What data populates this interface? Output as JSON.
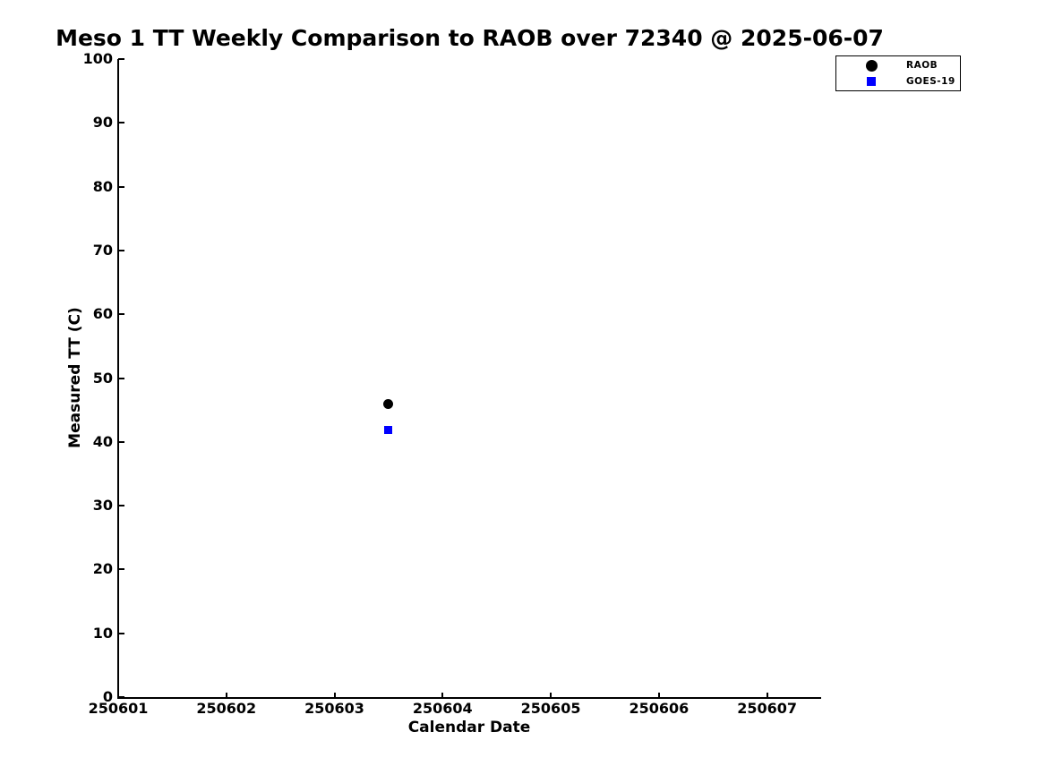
{
  "chart_data": {
    "type": "scatter",
    "title": "Meso 1 TT Weekly Comparison to RAOB over 72340 @ 2025-06-07",
    "xlabel": "Calendar Date",
    "ylabel": "Measured TT (C)",
    "xlim": [
      250601,
      250607.5
    ],
    "ylim": [
      0,
      100
    ],
    "x_ticks": [
      250601,
      250602,
      250603,
      250604,
      250605,
      250606,
      250607
    ],
    "y_ticks": [
      0,
      10,
      20,
      30,
      40,
      50,
      60,
      70,
      80,
      90,
      100
    ],
    "grid": false,
    "axis_color": "#000000",
    "text_color": "#000000",
    "background_color": "#ffffff",
    "legend": {
      "position": "top-right-outside-axes",
      "border_color": "#000000"
    },
    "series": [
      {
        "name": "RAOB",
        "marker": "circle",
        "color": "#000000",
        "marker_size_px": 11,
        "points": [
          {
            "x": 250603.5,
            "y": 46.0
          }
        ]
      },
      {
        "name": "GOES-19",
        "marker": "square",
        "color": "#0000ff",
        "marker_size_px": 9,
        "points": [
          {
            "x": 250603.5,
            "y": 41.8
          }
        ]
      }
    ]
  }
}
